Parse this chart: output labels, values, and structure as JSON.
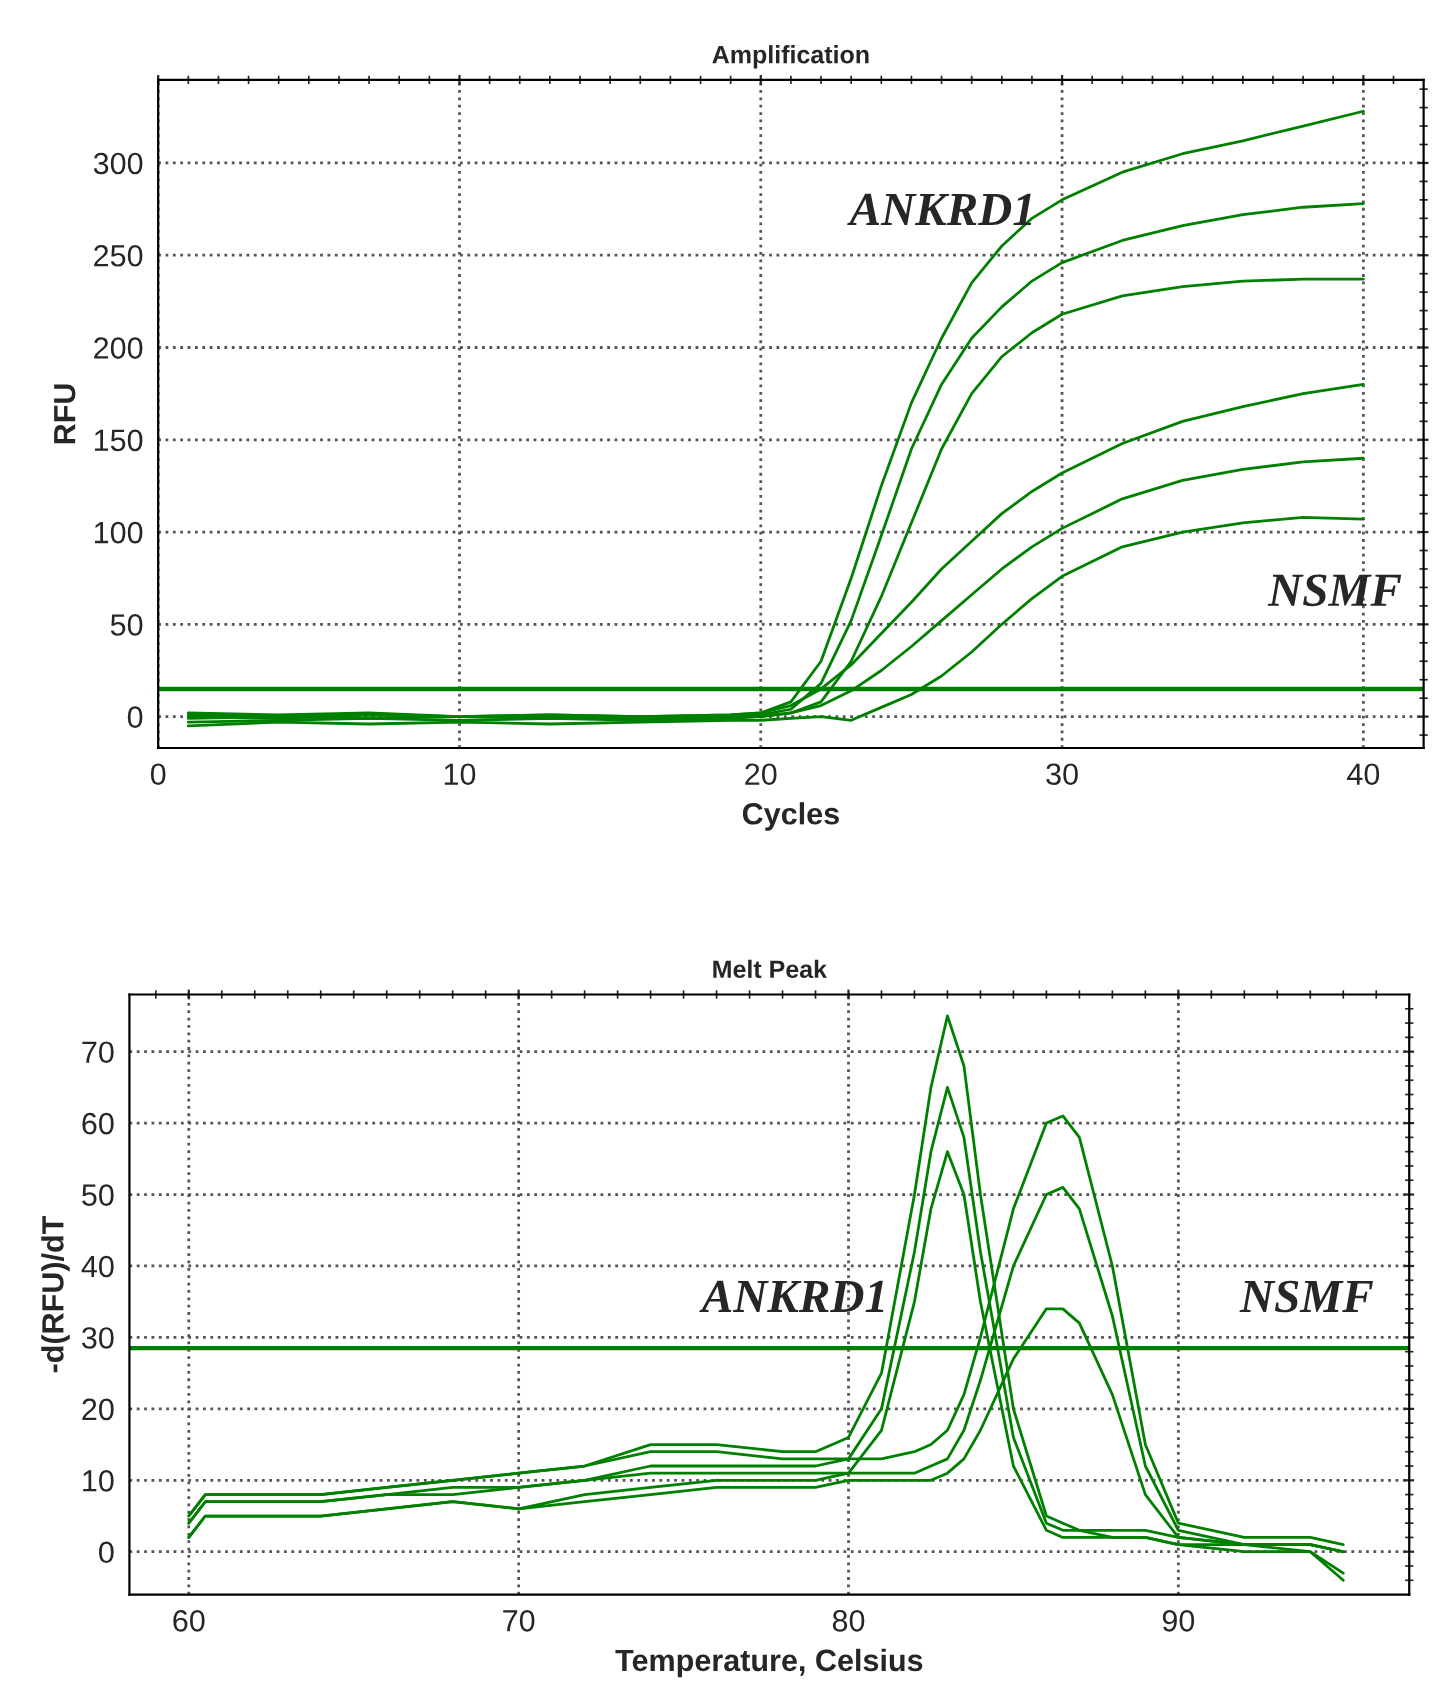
{
  "chart_data": [
    {
      "type": "line",
      "title": "Amplification",
      "xlabel": "Cycles",
      "ylabel": "RFU",
      "xlim": [
        0,
        42
      ],
      "ylim": [
        -17,
        345
      ],
      "xticks": [
        0,
        10,
        20,
        30,
        40
      ],
      "yticks": [
        0,
        50,
        100,
        150,
        200,
        250,
        300
      ],
      "grid": true,
      "series": [
        {
          "color": "#008000",
          "x": [
            1,
            4,
            7,
            10,
            13,
            16,
            19,
            20,
            21,
            22,
            23,
            24,
            25,
            26,
            27,
            28,
            29,
            30,
            32,
            34,
            36,
            38,
            40
          ],
          "values": [
            2,
            1,
            2,
            0,
            1,
            0,
            1,
            2,
            8,
            30,
            75,
            125,
            170,
            205,
            235,
            255,
            270,
            280,
            295,
            305,
            312,
            320,
            328
          ]
        },
        {
          "color": "#008000",
          "x": [
            1,
            4,
            7,
            10,
            13,
            16,
            19,
            20,
            21,
            22,
            23,
            24,
            25,
            26,
            27,
            28,
            29,
            30,
            32,
            34,
            36,
            38,
            40
          ],
          "values": [
            0,
            -1,
            1,
            0,
            -1,
            0,
            0,
            1,
            4,
            18,
            52,
            98,
            145,
            180,
            205,
            222,
            236,
            246,
            258,
            266,
            272,
            276,
            278
          ]
        },
        {
          "color": "#008000",
          "x": [
            1,
            4,
            7,
            10,
            13,
            16,
            19,
            20,
            21,
            22,
            23,
            24,
            25,
            26,
            27,
            28,
            29,
            30,
            32,
            34,
            36,
            38,
            40
          ],
          "values": [
            -3,
            -2,
            -1,
            -2,
            -1,
            -2,
            -1,
            0,
            2,
            8,
            30,
            65,
            105,
            145,
            175,
            195,
            208,
            218,
            228,
            233,
            236,
            237,
            237
          ]
        },
        {
          "color": "#008000",
          "x": [
            1,
            4,
            7,
            10,
            13,
            16,
            19,
            20,
            21,
            22,
            23,
            24,
            25,
            26,
            27,
            28,
            29,
            30,
            32,
            34,
            36,
            38,
            40
          ],
          "values": [
            1,
            0,
            1,
            0,
            1,
            0,
            1,
            2,
            6,
            15,
            28,
            45,
            62,
            80,
            95,
            110,
            122,
            132,
            148,
            160,
            168,
            175,
            180
          ]
        },
        {
          "color": "#008000",
          "x": [
            1,
            4,
            7,
            10,
            13,
            16,
            19,
            20,
            21,
            22,
            23,
            24,
            25,
            26,
            27,
            28,
            29,
            30,
            32,
            34,
            36,
            38,
            40
          ],
          "values": [
            -1,
            0,
            -1,
            0,
            0,
            -1,
            0,
            0,
            2,
            6,
            14,
            25,
            38,
            52,
            66,
            80,
            92,
            102,
            118,
            128,
            134,
            138,
            140
          ]
        },
        {
          "color": "#008000",
          "x": [
            1,
            4,
            7,
            10,
            13,
            16,
            19,
            20,
            21,
            22,
            23,
            24,
            25,
            26,
            27,
            28,
            29,
            30,
            32,
            34,
            36,
            38,
            40
          ],
          "values": [
            -5,
            -3,
            -4,
            -3,
            -4,
            -3,
            -2,
            -2,
            -1,
            0,
            -2,
            5,
            12,
            22,
            35,
            50,
            64,
            76,
            92,
            100,
            105,
            108,
            107
          ]
        }
      ],
      "ref_lines": [
        {
          "axis": "y",
          "value": 15,
          "color": "#008000"
        }
      ],
      "annotations": [
        "ANKRD1",
        "NSMF"
      ]
    },
    {
      "type": "line",
      "title": "Melt Peak",
      "xlabel": "Temperature, Celsius",
      "ylabel": "-d(RFU)/dT",
      "xlim": [
        58.2,
        97
      ],
      "ylim": [
        -6,
        78
      ],
      "xticks": [
        60,
        70,
        80,
        90
      ],
      "yticks": [
        0,
        10,
        20,
        30,
        40,
        50,
        60,
        70
      ],
      "grid": true,
      "series": [
        {
          "color": "#008000",
          "x": [
            60,
            60.5,
            62,
            64,
            66,
            68,
            70,
            72,
            74,
            76,
            78,
            79,
            80,
            81,
            82,
            82.5,
            83,
            83.5,
            84,
            85,
            86,
            86.5,
            87,
            88,
            89,
            90,
            92,
            94,
            95
          ],
          "values": [
            5,
            8,
            8,
            8,
            9,
            10,
            11,
            12,
            15,
            15,
            14,
            14,
            16,
            25,
            50,
            65,
            75,
            68,
            50,
            20,
            5,
            4,
            3,
            3,
            3,
            2,
            1,
            1,
            0
          ]
        },
        {
          "color": "#008000",
          "x": [
            60,
            60.5,
            62,
            64,
            66,
            68,
            70,
            72,
            74,
            76,
            78,
            79,
            80,
            81,
            82,
            82.5,
            83,
            83.5,
            84,
            85,
            86,
            86.5,
            87,
            88,
            89,
            90,
            92,
            94,
            95
          ],
          "values": [
            4,
            7,
            7,
            7,
            8,
            9,
            9,
            10,
            12,
            12,
            12,
            12,
            13,
            20,
            42,
            56,
            65,
            58,
            42,
            16,
            4,
            3,
            3,
            2,
            2,
            1,
            1,
            1,
            0
          ]
        },
        {
          "color": "#008000",
          "x": [
            60,
            60.5,
            62,
            64,
            66,
            68,
            70,
            72,
            74,
            76,
            78,
            79,
            80,
            81,
            82,
            82.5,
            83,
            83.5,
            84,
            85,
            86,
            86.5,
            87,
            88,
            89,
            90,
            92,
            94,
            95
          ],
          "values": [
            2,
            5,
            5,
            5,
            6,
            7,
            6,
            8,
            9,
            10,
            10,
            10,
            11,
            17,
            35,
            48,
            56,
            50,
            35,
            12,
            3,
            2,
            2,
            2,
            2,
            1,
            0,
            0,
            -3
          ]
        },
        {
          "color": "#008000",
          "x": [
            60,
            60.5,
            62,
            64,
            66,
            68,
            70,
            72,
            74,
            76,
            78,
            79,
            80,
            81,
            82,
            82.5,
            83,
            83.5,
            84,
            85,
            86,
            86.5,
            87,
            88,
            89,
            90,
            92,
            94,
            95
          ],
          "values": [
            5,
            8,
            8,
            8,
            9,
            10,
            11,
            12,
            14,
            14,
            13,
            13,
            13,
            13,
            14,
            15,
            17,
            22,
            30,
            48,
            60,
            61,
            58,
            40,
            15,
            4,
            2,
            2,
            1
          ]
        },
        {
          "color": "#008000",
          "x": [
            60,
            60.5,
            62,
            64,
            66,
            68,
            70,
            72,
            74,
            76,
            78,
            79,
            80,
            81,
            82,
            82.5,
            83,
            83.5,
            84,
            85,
            86,
            86.5,
            87,
            88,
            89,
            90,
            92,
            94,
            95
          ],
          "values": [
            4,
            7,
            7,
            7,
            8,
            8,
            9,
            10,
            11,
            11,
            11,
            11,
            11,
            11,
            11,
            12,
            13,
            17,
            24,
            40,
            50,
            51,
            48,
            33,
            12,
            3,
            1,
            1,
            0
          ]
        },
        {
          "color": "#008000",
          "x": [
            60,
            60.5,
            62,
            64,
            66,
            68,
            70,
            72,
            74,
            76,
            78,
            79,
            80,
            81,
            82,
            82.5,
            83,
            83.5,
            84,
            85,
            86,
            86.5,
            87,
            88,
            89,
            90,
            92,
            94,
            95
          ],
          "values": [
            2,
            5,
            5,
            5,
            6,
            7,
            6,
            7,
            8,
            9,
            9,
            9,
            10,
            10,
            10,
            10,
            11,
            13,
            17,
            27,
            34,
            34,
            32,
            22,
            8,
            2,
            1,
            0,
            -4
          ]
        }
      ],
      "ref_lines": [
        {
          "axis": "y",
          "value": 28.5,
          "color": "#008000"
        }
      ],
      "annotations": [
        "ANKRD1",
        "NSMF"
      ]
    }
  ]
}
